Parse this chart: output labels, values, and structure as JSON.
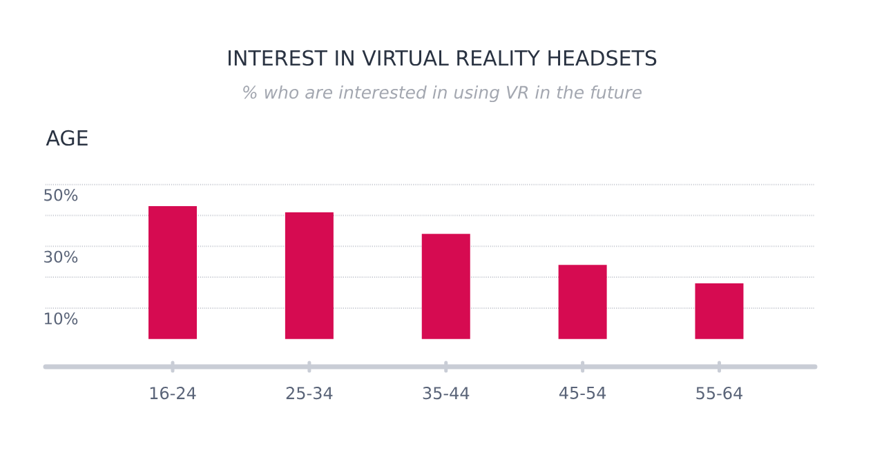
{
  "chart_data": {
    "type": "bar",
    "title": "INTEREST IN VIRTUAL REALITY HEADSETS",
    "subtitle": "% who are interested in using VR in the future",
    "xlabel": "AGE",
    "categories": [
      "16-24",
      "25-34",
      "35-44",
      "45-54",
      "55-64"
    ],
    "values": [
      43,
      41,
      34,
      24,
      18
    ],
    "color": "#d60b51",
    "ylim": [
      -9,
      50
    ],
    "yticks": [
      {
        "value": 10,
        "label": "10%"
      },
      {
        "value": 20,
        "label": null
      },
      {
        "value": 30,
        "label": "30%"
      },
      {
        "value": 40,
        "label": null
      },
      {
        "value": 50,
        "label": "50%"
      }
    ],
    "grid": "y"
  }
}
